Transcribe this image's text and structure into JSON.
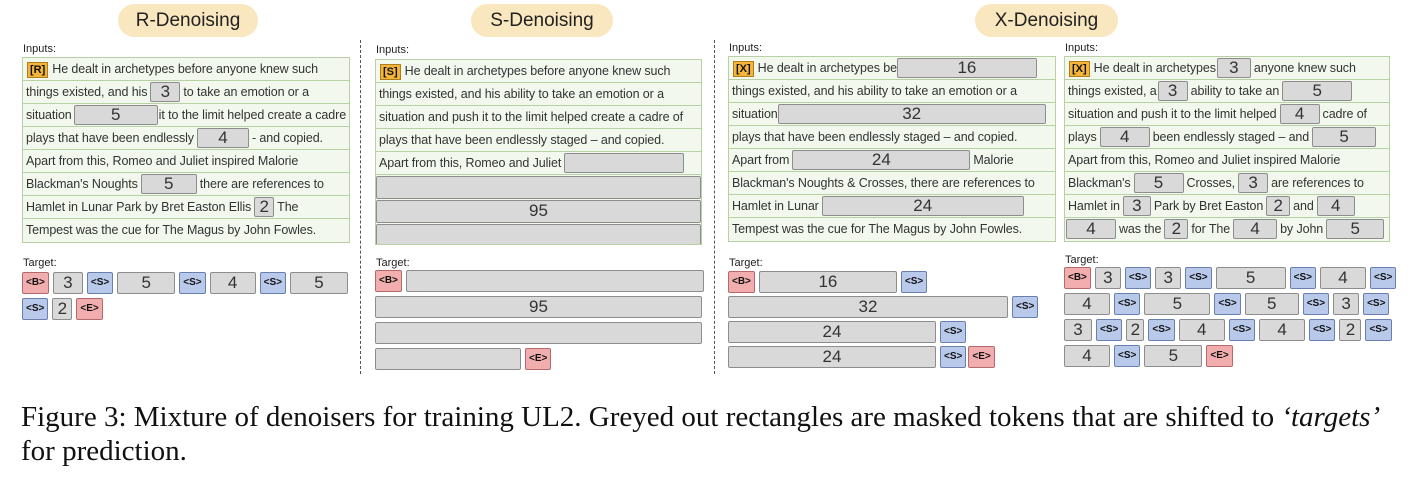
{
  "titles": {
    "r": "R-Denoising",
    "s": "S-Denoising",
    "x": "X-Denoising"
  },
  "labels": {
    "inputs": "Inputs:",
    "target": "Target:"
  },
  "markers": {
    "r": "[R]",
    "s": "[S]",
    "x": "[X]"
  },
  "tokens": {
    "begin": "<B>",
    "sep": "<S>",
    "end": "<E>"
  },
  "text": {
    "r1": "He dealt in archetypes before anyone knew such",
    "r2a": "things existed, and his",
    "r2b": "to take an emotion or a",
    "r3a": "situation",
    "r3b": "it to the limit helped create a cadre of",
    "r4a": "plays that have been endlessly",
    "r4b": "- and copied.",
    "r5": "Apart from  this, Romeo and Juliet inspired Malorie",
    "r6a": "Blackman's Noughts",
    "r6b": "there are references to",
    "r7a": "Hamlet in Lunar Park by Bret Easton Ellis",
    "r7b": "The",
    "r8": "Tempest was the cue for The Magus by John Fowles.",
    "s1": "He dealt in archetypes before anyone knew such",
    "s2": "things existed, and his ability to take an emotion or a",
    "s3": "situation and push it to the limit helped create a cadre of",
    "s4": "plays that have been endlessly staged – and copied.",
    "s5": "Apart from  this, Romeo and Juliet",
    "x1a_1": "He dealt in archetypes be",
    "x1a_2": "things existed, and his ability to take an emotion or a",
    "x1a_3": "situation",
    "x1a_4": "plays that have been endlessly staged – and copied.",
    "x1a_5a": "Apart from",
    "x1a_5b": "Malorie",
    "x1a_6": "Blackman's Noughts & Crosses, there are references to",
    "x1a_7": "Hamlet in Lunar",
    "x1a_8": "Tempest was the cue for The Magus by John Fowles.",
    "x2_1a": "He dealt in archetypes",
    "x2_1b": "anyone knew such",
    "x2_2a": "things existed, a",
    "x2_2b": "ability to take an",
    "x2_3a": "situation and push it to the limit helped",
    "x2_3b": "cadre of",
    "x2_4a": "plays",
    "x2_4b": "been endlessly staged – and",
    "x2_5": "Apart from  this, Romeo and Juliet inspired Malorie",
    "x2_6a": "Blackman's",
    "x2_6b": "Crosses,",
    "x2_6c": "are references to",
    "x2_7a": "Hamlet in",
    "x2_7b": "Park by Bret Easton",
    "x2_7c": "and",
    "x2_8a": "was the",
    "x2_8b": "for The",
    "x2_8c": "by John"
  },
  "spans": {
    "r_inputs": [
      "3",
      "5",
      "4",
      "5",
      "2"
    ],
    "r_target": [
      "3",
      "5",
      "4",
      "5",
      "2"
    ],
    "s_input": "95",
    "s_target": "95",
    "x1_inputs": [
      "16",
      "32",
      "24",
      "24"
    ],
    "x1_target": [
      "16",
      "32",
      "24",
      "24"
    ],
    "x2_inputs": [
      "3",
      "3",
      "5",
      "4",
      "4",
      "5",
      "5",
      "3",
      "3",
      "2",
      "4",
      "4",
      "2",
      "4",
      "5"
    ],
    "x2_target": [
      "3",
      "3",
      "5",
      "4",
      "4",
      "5",
      "5",
      "3",
      "3",
      "2",
      "4",
      "4",
      "2",
      "4",
      "5"
    ]
  },
  "caption": {
    "main": "Figure 3: Mixture of denoisers for training UL2. Greyed out rectangles are masked tokens that are shifted to ",
    "italic": "‘targets’",
    "tail": " for prediction."
  },
  "colors": {
    "title_pill": "#f9e7bf",
    "panel_bg": "#f2f8ee",
    "panel_border": "#b9cfa4",
    "mask": "#d9d9d9",
    "marker": "#f5b53d",
    "begin_end_token": "#f2aeae",
    "sep_token": "#b9c9ea"
  }
}
